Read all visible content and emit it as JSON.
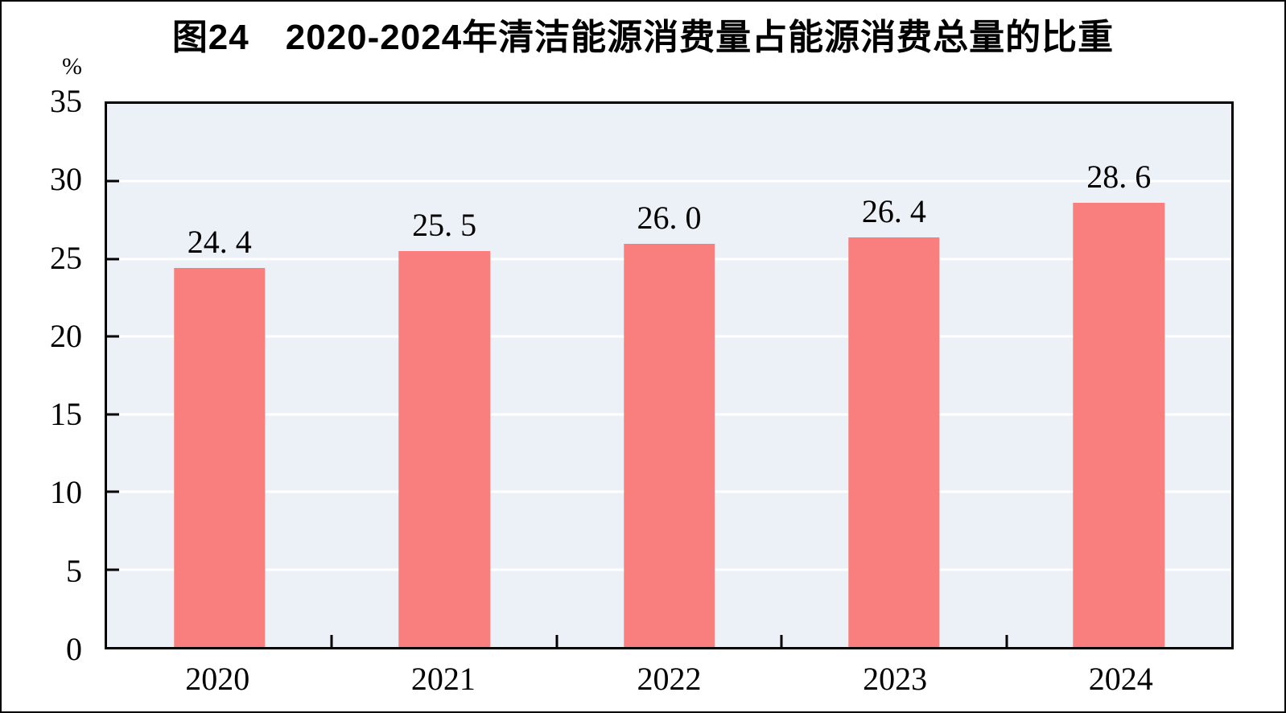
{
  "header": {
    "title": "图24　2020-2024年清洁能源消费量占能源消费总量的比重"
  },
  "chart_data": {
    "type": "bar",
    "title": "图24　2020-2024年清洁能源消费量占能源消费总量的比重",
    "ylabel": "%",
    "xlabel": "",
    "categories": [
      "2020",
      "2021",
      "2022",
      "2023",
      "2024"
    ],
    "values": [
      24.4,
      25.5,
      26.0,
      26.4,
      28.6
    ],
    "value_labels": [
      "24. 4",
      "25. 5",
      "26. 0",
      "26. 4",
      "28. 6"
    ],
    "ylim": [
      0,
      35
    ],
    "yticks": [
      0,
      5,
      10,
      15,
      20,
      25,
      30,
      35
    ],
    "grid": "horizontal",
    "legend_position": "none",
    "colors": {
      "bar": "#f97f7e",
      "plot_background": "#ebf1f6",
      "gridline": "#ffffff",
      "axis": "#000000",
      "text": "#000000"
    }
  }
}
